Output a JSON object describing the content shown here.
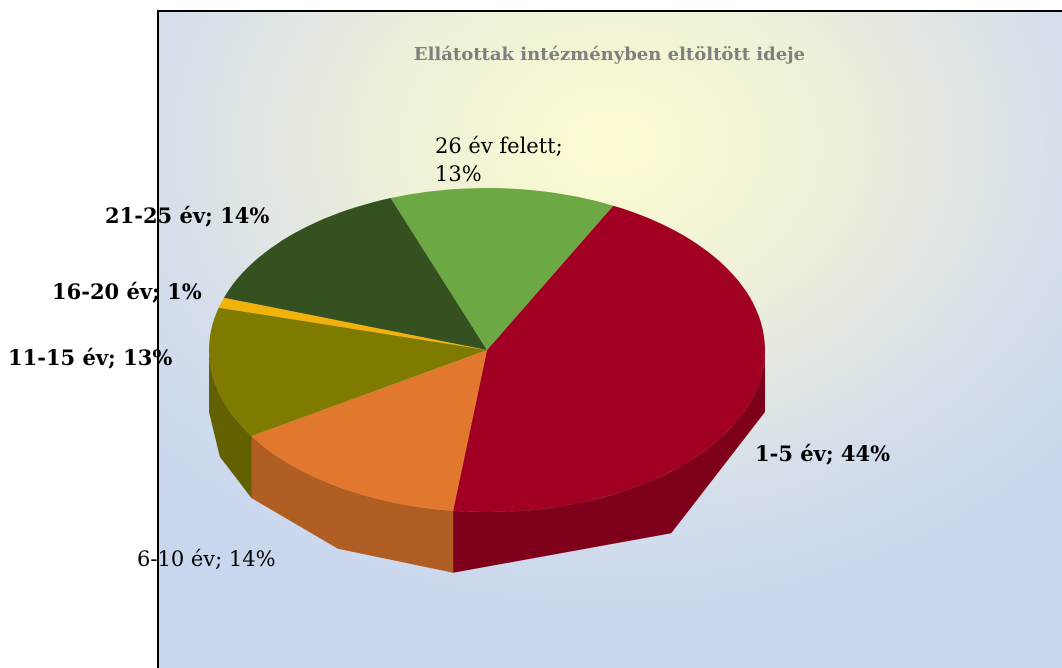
{
  "chart_data": {
    "type": "pie3d",
    "title": "Ellátottak intézményben eltöltött ideje",
    "categories": [
      "1-5 év",
      "6-10 év",
      "11-15 év",
      "16-20 év",
      "21-25 év",
      "26 év felett"
    ],
    "values": [
      44,
      14,
      13,
      1,
      14,
      13
    ],
    "value_labels": [
      "1-5 év; 44%",
      "6-10 év; 14%",
      "11-15 év; 13%",
      "16-20 év; 1%",
      "21-25 év; 14%",
      "26 év felett; 13%"
    ],
    "colors": [
      "#a10022",
      "#e2782e",
      "#7f7b00",
      "#f2b20a",
      "#34511f",
      "#6ca843"
    ]
  }
}
